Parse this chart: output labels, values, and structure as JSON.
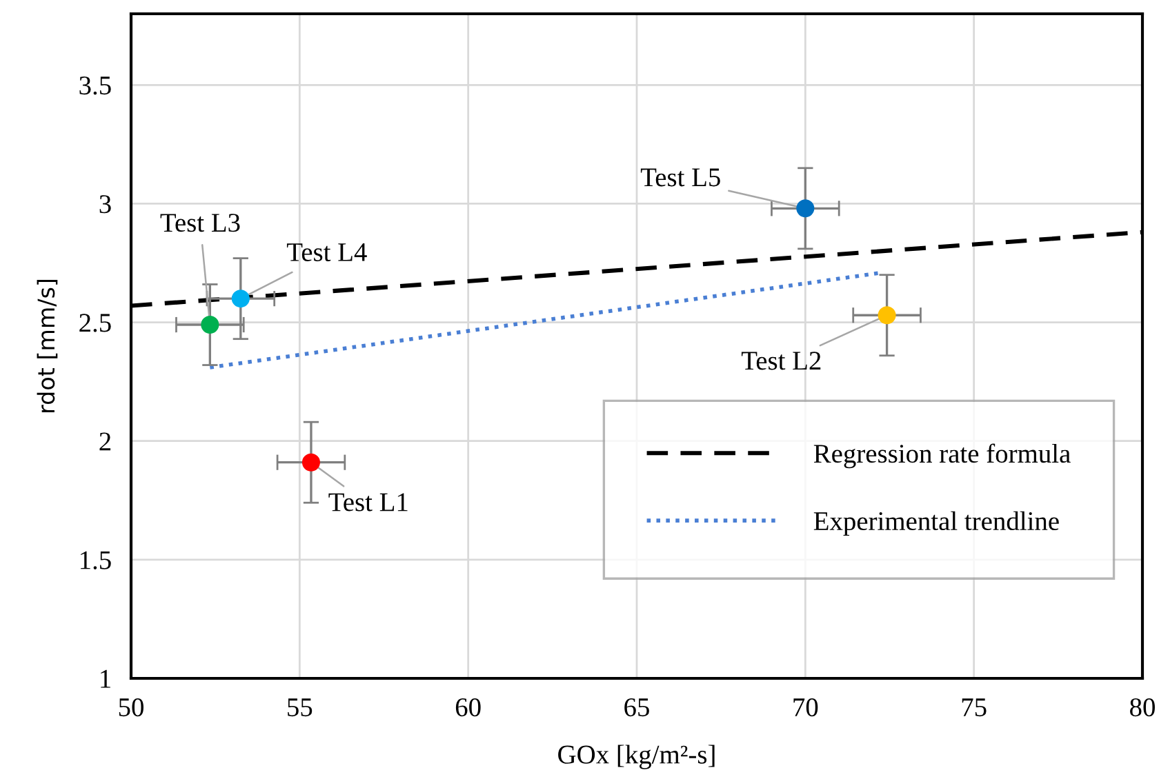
{
  "chart_data": {
    "type": "scatter",
    "xlabel": "GOx [kg/m²-s]",
    "ylabel": "rdot [mm/s]",
    "xlim": [
      50,
      80
    ],
    "xticks": [
      50,
      55,
      60,
      65,
      70,
      75,
      80
    ],
    "ylim": [
      1,
      3.8
    ],
    "yticks": [
      1,
      1.5,
      2,
      2.5,
      3,
      3.5
    ],
    "grid": true,
    "legend": "bottom right",
    "series": [
      {
        "x": [
          55.34,
          72.42,
          52.34,
          53.25,
          70.0
        ],
        "values": [
          1.91,
          2.53,
          2.49,
          2.6,
          2.98
        ],
        "colors": [
          "#ff0000",
          "#ffc000",
          "#00b050",
          "#00b0f0",
          "#0070c0"
        ],
        "errors": [
          0.17,
          0.17,
          0.17,
          0.17,
          0.17
        ],
        "xerrors": [
          1.0,
          1.0,
          1.0,
          1.0,
          1.0
        ],
        "marker": "circle"
      },
      {
        "type": "line",
        "name": "Regression rate formula",
        "color": "#000000",
        "x": [
          50,
          80
        ],
        "values": [
          2.57,
          2.88
        ],
        "line_style": "dashed"
      },
      {
        "type": "line",
        "name": "Experimental trendline",
        "color": "#4a7fd4",
        "x": [
          52.34,
          72.3
        ],
        "values": [
          2.31,
          2.71
        ],
        "line_style": "dotted"
      }
    ],
    "annotations": [
      {
        "text": "Test L1",
        "x": 55.34,
        "y": 1.91
      },
      {
        "text": "Test L2",
        "x": 72.42,
        "y": 2.53
      },
      {
        "text": "Test L3",
        "x": 52.34,
        "y": 2.49
      },
      {
        "text": "Test L4",
        "x": 53.25,
        "y": 2.6
      },
      {
        "text": "Test L5",
        "x": 70.0,
        "y": 2.98
      }
    ]
  }
}
